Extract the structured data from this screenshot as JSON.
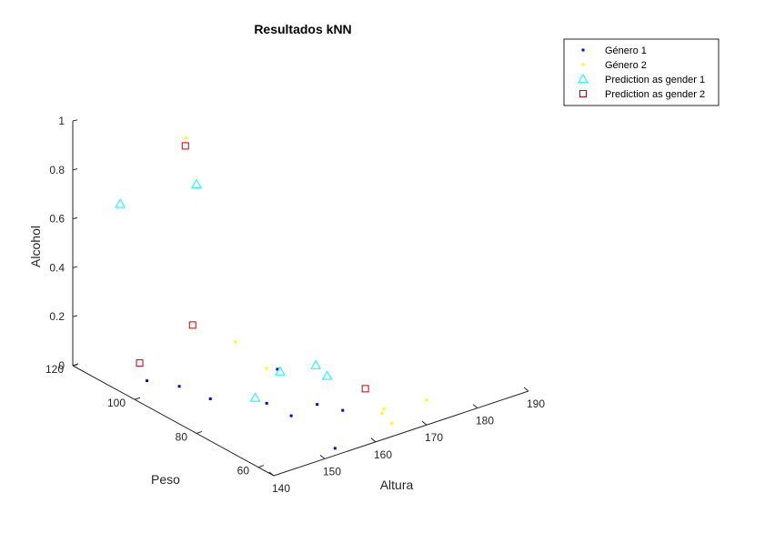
{
  "chart_data": {
    "type": "scatter",
    "title": "Resultados kNN",
    "xlabel": "Altura",
    "ylabel": "Peso",
    "zlabel": "Alcohol",
    "xlim": [
      140,
      190
    ],
    "ylim": [
      55,
      120
    ],
    "zlim": [
      0,
      1
    ],
    "xticks": [
      140,
      150,
      160,
      170,
      180,
      190
    ],
    "yticks": [
      60,
      80,
      100,
      120
    ],
    "zticks": [
      "0",
      "0.2",
      "0.4",
      "0.6",
      "0.8",
      "1"
    ],
    "legend_position": "top-right",
    "grid": false,
    "series": [
      {
        "name": "Género 1",
        "marker": "dot",
        "color": "#0000ff",
        "points": [
          {
            "x": 149.4,
            "y": 91.0,
            "z": 0.0
          },
          {
            "x": 145.7,
            "y": 105.4,
            "z": 0.0
          },
          {
            "x": 148.4,
            "y": 99.4,
            "z": 0.0
          },
          {
            "x": 155.3,
            "y": 82.5,
            "z": 0.0
          },
          {
            "x": 155.5,
            "y": 74.9,
            "z": 0.0
          },
          {
            "x": 164.2,
            "y": 93.7,
            "z": 0.0
          },
          {
            "x": 161.2,
            "y": 75.9,
            "z": 0.0
          },
          {
            "x": 163.0,
            "y": 70.6,
            "z": 0.0
          },
          {
            "x": 153.6,
            "y": 57.6,
            "z": 0.0
          }
        ]
      },
      {
        "name": "Género 2",
        "marker": "dot",
        "color": "#ffff00",
        "points": [
          {
            "x": 150.1,
            "y": 100.0,
            "z": 1.0
          },
          {
            "x": 159.7,
            "y": 99.9,
            "z": 0.1
          },
          {
            "x": 163.1,
            "y": 95.4,
            "z": 0.0
          },
          {
            "x": 167.2,
            "y": 64.8,
            "z": 0.0
          },
          {
            "x": 168.4,
            "y": 66.2,
            "z": 0.0
          },
          {
            "x": 166.1,
            "y": 59.9,
            "z": 0.0
          },
          {
            "x": 175.6,
            "y": 64.2,
            "z": 0.0
          }
        ]
      },
      {
        "name": "Prediction as gender 1",
        "marker": "triangle",
        "color": "#00ffff",
        "points": [
          {
            "x": 138.2,
            "y": 101.7,
            "z": 0.8
          },
          {
            "x": 151.9,
            "y": 99.6,
            "z": 0.8
          },
          {
            "x": 155.1,
            "y": 85.9,
            "z": 0.0
          },
          {
            "x": 164.0,
            "y": 92.5,
            "z": 0.0
          },
          {
            "x": 169.8,
            "y": 90.5,
            "z": 0.0
          },
          {
            "x": 168.8,
            "y": 85.2,
            "z": 0.0
          }
        ]
      },
      {
        "name": "Prediction as gender 2",
        "marker": "square",
        "color": "#cc0000",
        "points": [
          {
            "x": 148.2,
            "y": 97.1,
            "z": 1.0
          },
          {
            "x": 150.6,
            "y": 98.7,
            "z": 0.24
          },
          {
            "x": 142.2,
            "y": 102.0,
            "z": 0.12
          },
          {
            "x": 170.6,
            "y": 75.8,
            "z": 0.0
          }
        ]
      }
    ]
  }
}
